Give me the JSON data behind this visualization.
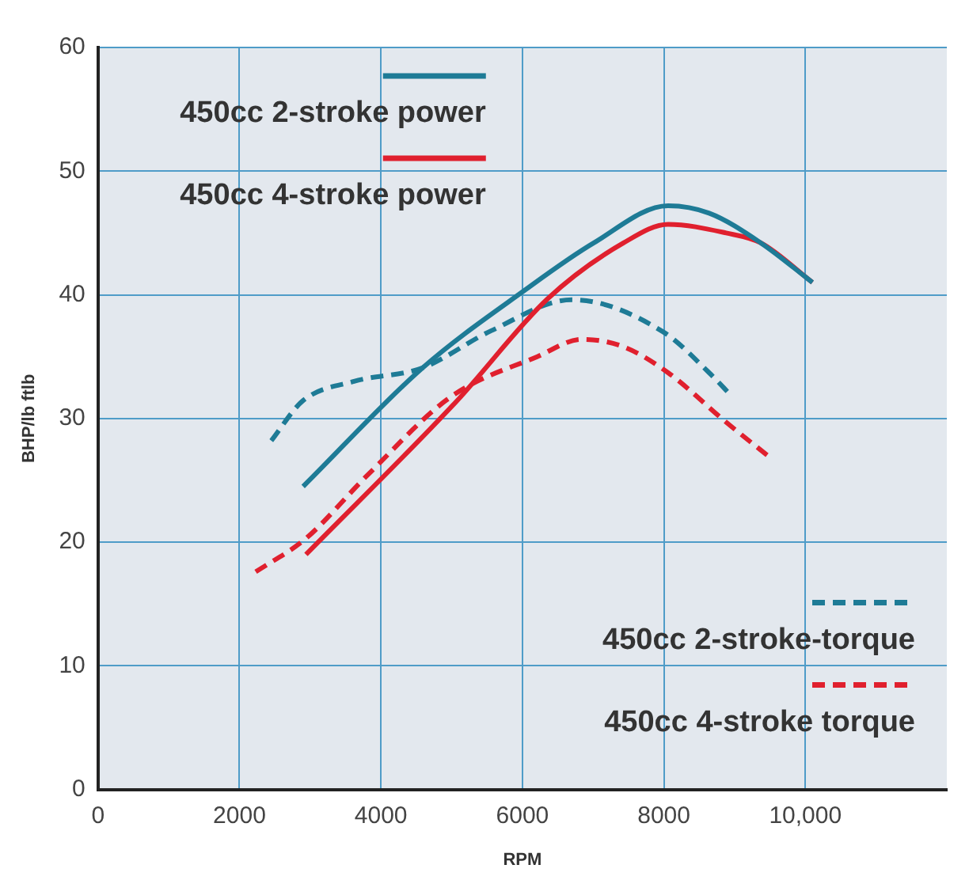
{
  "chart_data": {
    "type": "line",
    "xlabel": "RPM",
    "ylabel": "BHP/lb ftlb",
    "xlim": [
      0,
      12000
    ],
    "xticks": [
      0,
      2000,
      4000,
      6000,
      8000,
      {
        "value": 10000,
        "label": "10,000"
      }
    ],
    "ylim": [
      0,
      60
    ],
    "yticks": [
      0,
      10,
      20,
      30,
      40,
      50,
      60
    ],
    "grid": true,
    "legend": "top",
    "marker": "none",
    "series": [
      {
        "name": "450cc 2-stroke power",
        "color": "#1e7b96",
        "line_style": "solid",
        "x": [
          2900,
          4590,
          6040,
          7010,
          8060,
          8640,
          9370,
          10100
        ],
        "values": [
          24.5,
          34.1,
          40.4,
          44.2,
          47.2,
          46.6,
          44.2,
          41
        ]
      },
      {
        "name": "450cc 4-stroke power",
        "color": "#e0202e",
        "line_style": "solid",
        "x": [
          2940,
          5070,
          6360,
          7430,
          8060,
          8880,
          9370,
          10100
        ],
        "values": [
          19,
          31.4,
          39.7,
          44.2,
          45.7,
          45,
          44.2,
          41
        ]
      },
      {
        "name": "450cc 2-stroke-torque",
        "color": "#1e7b96",
        "line_style": "dashed",
        "x": [
          2450,
          2890,
          3620,
          4590,
          5560,
          6700,
          7990,
          8640,
          8960
        ],
        "values": [
          28.2,
          31.4,
          33,
          34.1,
          37.1,
          39.6,
          37,
          33.7,
          31.8
        ]
      },
      {
        "name": "450cc 4-stroke torque",
        "color": "#e0202e",
        "line_style": "dashed",
        "x": [
          2230,
          2940,
          3790,
          5000,
          6210,
          6840,
          7430,
          8060,
          8880,
          9510
        ],
        "values": [
          17.6,
          20.3,
          25.3,
          31.8,
          35,
          36.4,
          35.8,
          33.7,
          29.7,
          26.8
        ]
      }
    ]
  }
}
